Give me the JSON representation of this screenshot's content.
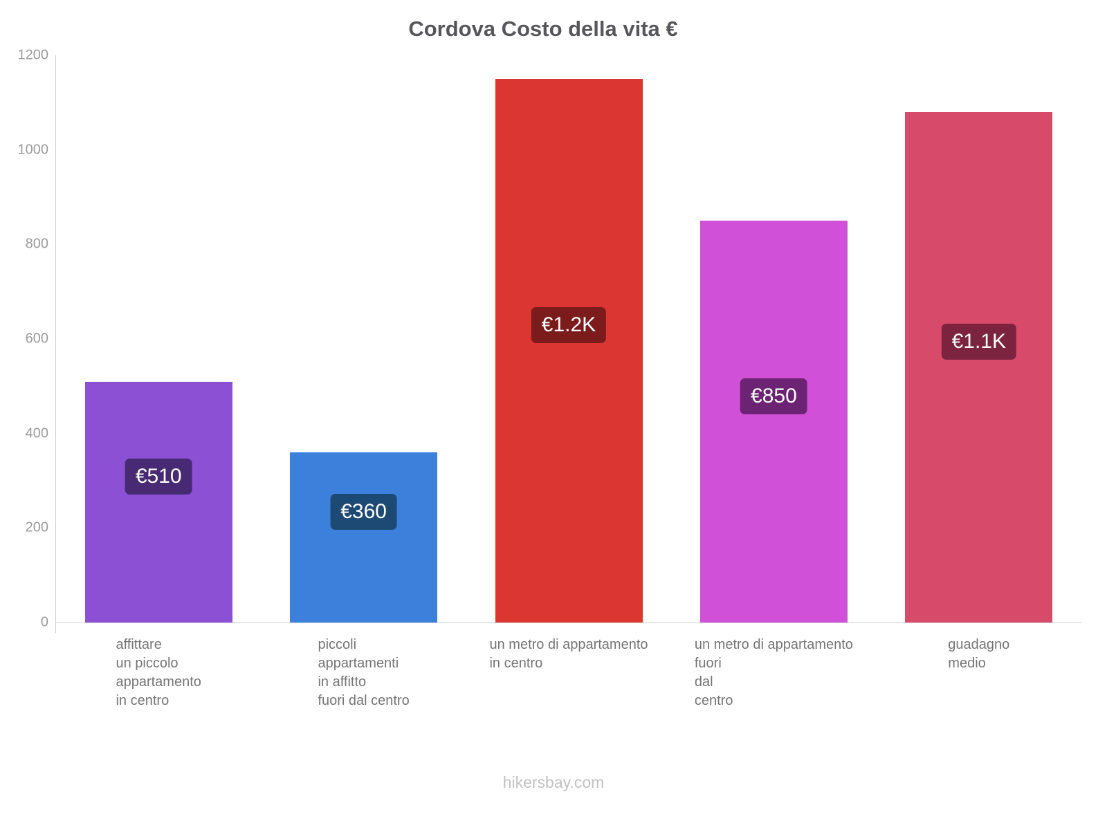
{
  "page": {
    "footer": "hikersbay.com"
  },
  "chart_data": {
    "type": "bar",
    "title": "Cordova Costo della vita €",
    "currency": "€",
    "categories": [
      "affittare un piccolo appartamento in centro",
      "piccoli appartamenti in affitto fuori dal centro",
      "un metro di appartamento in centro",
      "un metro di appartamento fuori dal centro",
      "guadagno medio"
    ],
    "category_lines": [
      [
        "affittare",
        "un piccolo",
        "appartamento",
        "in centro"
      ],
      [
        "piccoli",
        "appartamenti",
        "in affitto",
        "fuori dal centro"
      ],
      [
        "un metro di appartamento",
        "in centro"
      ],
      [
        "un metro di appartamento",
        "fuori",
        "dal",
        "centro"
      ],
      [
        "guadagno",
        "medio"
      ]
    ],
    "values": [
      510,
      360,
      1150,
      850,
      1080
    ],
    "value_labels": [
      "€510",
      "€360",
      "€1.2K",
      "€850",
      "€1.1K"
    ],
    "bar_colors": [
      "#8c50d4",
      "#3c80dc",
      "#db3631",
      "#d150d8",
      "#d84a6a"
    ],
    "badge_colors": [
      "#482a74",
      "#1d4a75",
      "#7c1b1b",
      "#6c2373",
      "#7c2340"
    ],
    "xlabel": "",
    "ylabel": "",
    "ylim": [
      0,
      1200
    ],
    "yticks": [
      0,
      200,
      400,
      600,
      800,
      1000,
      1200
    ],
    "grid": false,
    "legend": false
  }
}
